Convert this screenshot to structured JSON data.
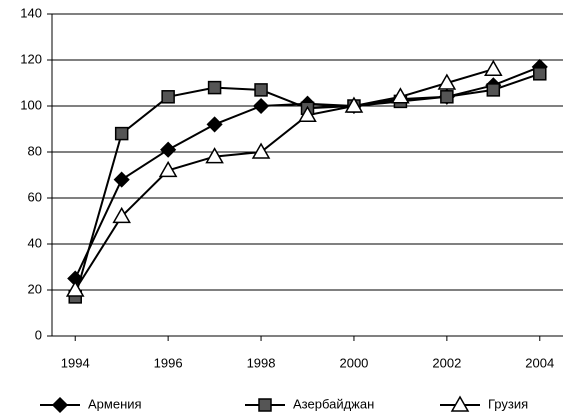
{
  "chart_data": {
    "type": "line",
    "x": [
      1994,
      1995,
      1996,
      1997,
      1998,
      1999,
      2000,
      2001,
      2002,
      2003,
      2004
    ],
    "series": [
      {
        "name": "Армения",
        "color": "#000000",
        "marker": "diamond",
        "marker_fill": "#000000",
        "values": [
          25,
          68,
          81,
          92,
          100,
          101,
          100,
          103,
          104,
          109,
          117
        ]
      },
      {
        "name": "Азербайджан",
        "color": "#000000",
        "marker": "square",
        "marker_fill": "#555555",
        "values": [
          17,
          88,
          104,
          108,
          107,
          99,
          100,
          102,
          104,
          107,
          114
        ]
      },
      {
        "name": "Грузия",
        "color": "#000000",
        "marker": "triangle",
        "marker_fill": "#ffffff",
        "values": [
          20,
          52,
          72,
          78,
          80,
          96,
          100,
          104,
          110,
          116,
          null
        ]
      }
    ],
    "xlim": [
      1993.5,
      2004.5
    ],
    "xticks": [
      1994,
      1996,
      1998,
      2000,
      2002,
      2004
    ],
    "ylim": [
      0,
      140
    ],
    "yticks": [
      0,
      20,
      40,
      60,
      80,
      100,
      120,
      140
    ],
    "grid": true,
    "legend": "bottom"
  }
}
